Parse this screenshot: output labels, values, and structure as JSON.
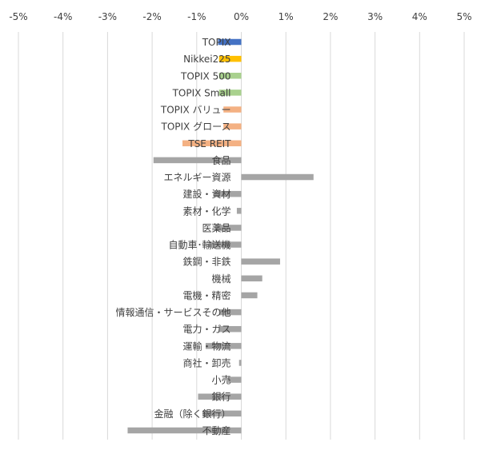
{
  "chart_data": {
    "type": "bar",
    "orientation": "horizontal",
    "x_ticks": [
      "-5%",
      "-4%",
      "-3%",
      "-2%",
      "-1%",
      "0%",
      "1%",
      "2%",
      "3%",
      "4%",
      "5%"
    ],
    "xlim": [
      -5,
      5
    ],
    "unit": "%",
    "grid": "vertical",
    "legend": "none",
    "categories": [
      "TOPIX",
      "Nikkei225",
      "TOPIX 500",
      "TOPIX Small",
      "TOPIX バリュー",
      "TOPIX グロース",
      "TSE REIT",
      "食品",
      "エネルギー資源",
      "建設・資材",
      "素材・化学",
      "医薬品",
      "自動車･輸送機",
      "鉄鋼・非鉄",
      "機械",
      "電機・精密",
      "情報通信・サービスその他",
      "電力・ガス",
      "運輸・物流",
      "商社・卸売",
      "小売",
      "銀行",
      "金融（除く銀行）",
      "不動産"
    ],
    "values": [
      -0.52,
      -0.5,
      -0.5,
      -0.5,
      -0.4,
      -0.4,
      -1.32,
      -1.97,
      1.62,
      -0.6,
      -0.1,
      -0.58,
      -0.73,
      0.87,
      0.47,
      0.36,
      -0.5,
      -0.5,
      -0.8,
      -0.05,
      -0.3,
      -0.97,
      -0.87,
      -2.55
    ],
    "bar_colors": [
      "#4472c4",
      "#ffc000",
      "#a9d18e",
      "#a9d18e",
      "#f4b183",
      "#f4b183",
      "#f4b183",
      "#a5a5a5",
      "#a5a5a5",
      "#a5a5a5",
      "#a5a5a5",
      "#a5a5a5",
      "#a5a5a5",
      "#a5a5a5",
      "#a5a5a5",
      "#a5a5a5",
      "#a5a5a5",
      "#a5a5a5",
      "#a5a5a5",
      "#a5a5a5",
      "#a5a5a5",
      "#a5a5a5",
      "#a5a5a5",
      "#a5a5a5"
    ],
    "gridline_color": "#d9d9d9",
    "label_color": "#404040"
  }
}
